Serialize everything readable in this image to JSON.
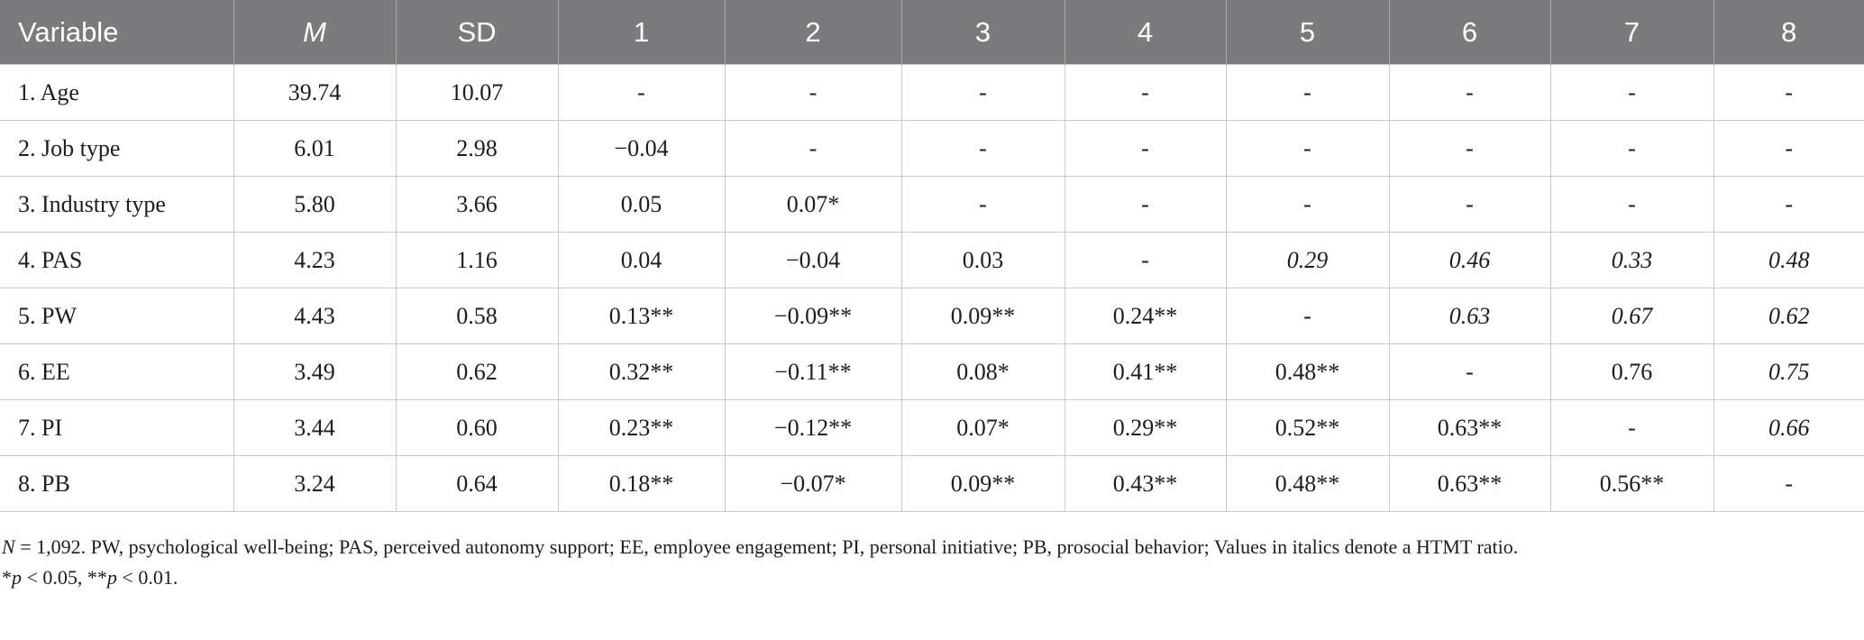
{
  "table": {
    "headers": [
      {
        "text": "Variable",
        "italic": false
      },
      {
        "text": "M",
        "italic": true
      },
      {
        "text": "SD",
        "italic": false
      },
      {
        "text": "1",
        "italic": false
      },
      {
        "text": "2",
        "italic": false
      },
      {
        "text": "3",
        "italic": false
      },
      {
        "text": "4",
        "italic": false
      },
      {
        "text": "5",
        "italic": false
      },
      {
        "text": "6",
        "italic": false
      },
      {
        "text": "7",
        "italic": false
      },
      {
        "text": "8",
        "italic": false
      }
    ],
    "rows": [
      {
        "cells": [
          "1. Age",
          "39.74",
          "10.07",
          "-",
          "-",
          "-",
          "-",
          "-",
          "-",
          "-",
          "-"
        ],
        "italic": []
      },
      {
        "cells": [
          "2. Job type",
          "6.01",
          "2.98",
          "−0.04",
          "-",
          "-",
          "-",
          "-",
          "-",
          "-",
          "-"
        ],
        "italic": []
      },
      {
        "cells": [
          "3. Industry type",
          "5.80",
          "3.66",
          "0.05",
          "0.07*",
          "-",
          "-",
          "-",
          "-",
          "-",
          "-"
        ],
        "italic": []
      },
      {
        "cells": [
          "4. PAS",
          "4.23",
          "1.16",
          "0.04",
          "−0.04",
          "0.03",
          "-",
          "0.29",
          "0.46",
          "0.33",
          "0.48"
        ],
        "italic": [
          7,
          8,
          9,
          10
        ]
      },
      {
        "cells": [
          "5. PW",
          "4.43",
          "0.58",
          "0.13**",
          "−0.09**",
          "0.09**",
          "0.24**",
          "-",
          "0.63",
          "0.67",
          "0.62"
        ],
        "italic": [
          8,
          9,
          10
        ]
      },
      {
        "cells": [
          "6. EE",
          "3.49",
          "0.62",
          "0.32**",
          "−0.11**",
          "0.08*",
          "0.41**",
          "0.48**",
          "-",
          "0.76",
          "0.75"
        ],
        "italic": [
          10
        ]
      },
      {
        "cells": [
          "7. PI",
          "3.44",
          "0.60",
          "0.23**",
          "−0.12**",
          "0.07*",
          "0.29**",
          "0.52**",
          "0.63**",
          "-",
          "0.66"
        ],
        "italic": [
          10
        ]
      },
      {
        "cells": [
          "8. PB",
          "3.24",
          "0.64",
          "0.18**",
          "−0.07*",
          "0.09**",
          "0.43**",
          "0.48**",
          "0.63**",
          "0.56**",
          "-"
        ],
        "italic": []
      }
    ]
  },
  "note": {
    "line1_n": "N",
    "line1_text": " = 1,092. PW, psychological well-being; PAS, perceived autonomy support; EE, employee engagement; PI, personal initiative; PB, prosocial behavior; Values in italics denote a HTMT ratio.",
    "line2_p1_star": "*",
    "line2_p1": "p",
    "line2_p1_val": " < 0.05, **",
    "line2_p2": "p",
    "line2_p2_val": " < 0.01."
  }
}
